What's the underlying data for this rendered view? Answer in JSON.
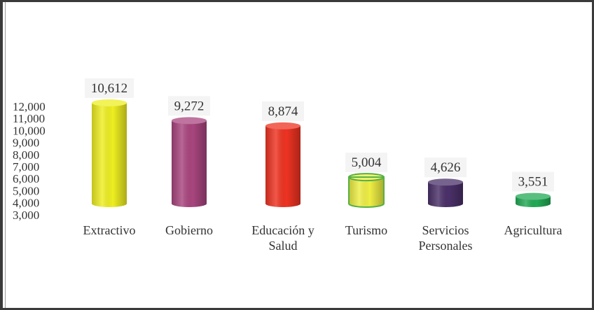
{
  "chart_data": {
    "type": "bar",
    "categories": [
      "Extractivo",
      "Gobierno",
      "Educación y\nSalud",
      "Turismo",
      "Servicios\nPersonales",
      "Agricultura"
    ],
    "values": [
      10612,
      9272,
      8874,
      5004,
      4626,
      3551
    ],
    "value_labels": [
      "10,612",
      "9,272",
      "8,874",
      "5,004",
      "4,626",
      "3,551"
    ],
    "colors": [
      "#eeee22",
      "#a8457e",
      "#ee3322",
      "#eeee44",
      "#4a3068",
      "#22aa55"
    ],
    "y_ticks": [
      "12,000",
      "11,000",
      "10,000",
      "9,000",
      "8,000",
      "7,000",
      "6,000",
      "5,000",
      "4,000",
      "3,000"
    ],
    "ylim": [
      3000,
      12000
    ],
    "title": "",
    "xlabel": "",
    "ylabel": "",
    "grid": false,
    "legend": "none"
  }
}
